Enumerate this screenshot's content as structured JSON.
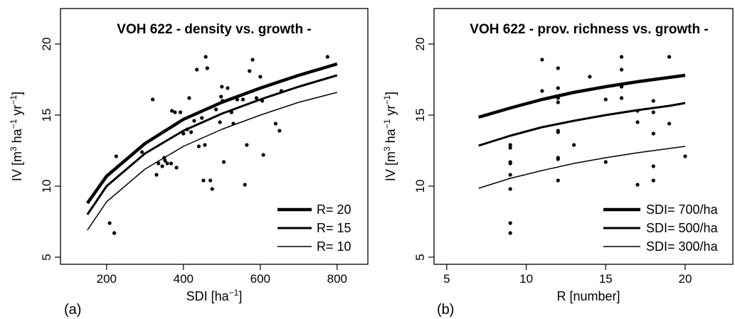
{
  "chart_data": [
    {
      "type": "scatter",
      "panel_label": "(a)",
      "title": "VOH 622 - density vs. growth -",
      "xlabel_main": "SDI [ha",
      "xlabel_sup": "−1",
      "xlabel_end": "]",
      "ylabel_main": "IV [m",
      "ylabel_sup1": "3",
      "ylabel_mid": " ha",
      "ylabel_sup2": "−1",
      "ylabel_mid2": " yr",
      "ylabel_sup3": "−1",
      "ylabel_end": "]",
      "xlim": [
        80,
        880
      ],
      "ylim": [
        4.5,
        22.5
      ],
      "xticks": [
        200,
        400,
        600,
        800
      ],
      "xtick_labels": [
        "200",
        "400",
        "600",
        "800"
      ],
      "yticks": [
        5,
        10,
        15,
        20
      ],
      "ytick_labels": [
        "5",
        "10",
        "15",
        "20"
      ],
      "legend_position": "bottom-right",
      "points": [
        [
          208,
          7.4
        ],
        [
          220,
          6.7
        ],
        [
          225,
          12.1
        ],
        [
          292,
          12.4
        ],
        [
          320,
          16.1
        ],
        [
          330,
          10.8
        ],
        [
          335,
          11.6
        ],
        [
          345,
          11.4
        ],
        [
          350,
          12.0
        ],
        [
          352,
          11.8
        ],
        [
          358,
          11.6
        ],
        [
          368,
          11.6
        ],
        [
          370,
          15.3
        ],
        [
          378,
          15.2
        ],
        [
          382,
          11.3
        ],
        [
          392,
          15.2
        ],
        [
          400,
          13.7
        ],
        [
          410,
          14.0
        ],
        [
          415,
          16.2
        ],
        [
          420,
          13.8
        ],
        [
          428,
          14.6
        ],
        [
          435,
          18.2
        ],
        [
          440,
          12.8
        ],
        [
          448,
          14.8
        ],
        [
          452,
          10.4
        ],
        [
          456,
          12.9
        ],
        [
          458,
          19.1
        ],
        [
          462,
          18.3
        ],
        [
          470,
          10.4
        ],
        [
          475,
          9.8
        ],
        [
          485,
          15.4
        ],
        [
          495,
          14.5
        ],
        [
          498,
          16.3
        ],
        [
          500,
          17.0
        ],
        [
          502,
          16.0
        ],
        [
          505,
          11.7
        ],
        [
          515,
          16.9
        ],
        [
          525,
          15.2
        ],
        [
          530,
          14.4
        ],
        [
          540,
          16.1
        ],
        [
          555,
          16.1
        ],
        [
          560,
          10.1
        ],
        [
          565,
          12.9
        ],
        [
          572,
          18.1
        ],
        [
          580,
          18.9
        ],
        [
          590,
          16.2
        ],
        [
          600,
          17.7
        ],
        [
          605,
          16.0
        ],
        [
          608,
          12.2
        ],
        [
          640,
          14.4
        ],
        [
          650,
          13.9
        ],
        [
          655,
          16.7
        ],
        [
          775,
          19.1
        ]
      ],
      "curves": [
        {
          "name": "R= 20",
          "stroke_width": 4.5,
          "x": [
            150,
            200,
            300,
            400,
            500,
            600,
            700,
            800
          ],
          "y": [
            8.8,
            10.7,
            13.0,
            14.7,
            15.9,
            16.9,
            17.8,
            18.6
          ]
        },
        {
          "name": "R= 15",
          "stroke_width": 3,
          "x": [
            150,
            200,
            300,
            400,
            500,
            600,
            700,
            800
          ],
          "y": [
            8.0,
            10.0,
            12.3,
            13.9,
            15.1,
            16.1,
            17.0,
            17.8
          ]
        },
        {
          "name": "R= 10",
          "stroke_width": 1.5,
          "x": [
            150,
            200,
            300,
            400,
            500,
            600,
            700,
            800
          ],
          "y": [
            6.9,
            8.9,
            11.2,
            12.8,
            14.0,
            15.0,
            15.9,
            16.6
          ]
        }
      ]
    },
    {
      "type": "scatter",
      "panel_label": "(b)",
      "title": "VOH 622 - prov. richness vs. growth -",
      "xlabel_main": "R [number]",
      "ylabel_main": "IV [m",
      "ylabel_sup1": "3",
      "ylabel_mid": " ha",
      "ylabel_sup2": "−1",
      "ylabel_mid2": " yr",
      "ylabel_sup3": "−1",
      "ylabel_end": "]",
      "xlim": [
        4.2,
        23.0
      ],
      "ylim": [
        4.5,
        22.5
      ],
      "xticks": [
        5,
        10,
        15,
        20
      ],
      "xtick_labels": [
        "5",
        "10",
        "15",
        "20"
      ],
      "yticks": [
        5,
        10,
        15,
        20
      ],
      "ytick_labels": [
        "5",
        "10",
        "15",
        "20"
      ],
      "legend_position": "bottom-right",
      "points": [
        [
          9,
          6.7
        ],
        [
          9,
          7.4
        ],
        [
          9,
          9.8
        ],
        [
          9,
          10.8
        ],
        [
          9,
          11.6
        ],
        [
          9,
          11.7
        ],
        [
          9,
          12.7
        ],
        [
          9,
          12.9
        ],
        [
          11,
          16.7
        ],
        [
          11,
          18.9
        ],
        [
          12,
          10.4
        ],
        [
          12,
          11.9
        ],
        [
          12,
          12.0
        ],
        [
          12,
          13.8
        ],
        [
          12,
          13.9
        ],
        [
          12,
          15.9
        ],
        [
          12,
          16.2
        ],
        [
          12,
          16.9
        ],
        [
          12,
          18.3
        ],
        [
          13,
          12.9
        ],
        [
          14,
          17.7
        ],
        [
          15,
          11.7
        ],
        [
          15,
          16.1
        ],
        [
          16,
          16.2
        ],
        [
          16,
          17.0
        ],
        [
          16,
          18.2
        ],
        [
          16,
          19.1
        ],
        [
          17,
          10.1
        ],
        [
          17,
          14.5
        ],
        [
          17,
          15.3
        ],
        [
          18,
          10.4
        ],
        [
          18,
          11.4
        ],
        [
          18,
          13.7
        ],
        [
          18,
          15.2
        ],
        [
          18,
          16.0
        ],
        [
          19,
          14.4
        ],
        [
          19,
          19.1
        ],
        [
          20,
          12.1
        ]
      ],
      "curves": [
        {
          "name_main": "SDI=  700/ha",
          "stroke_width": 4.5,
          "x": [
            7,
            9,
            11,
            13,
            15,
            17,
            19,
            20
          ],
          "y": [
            14.85,
            15.5,
            16.1,
            16.6,
            17.0,
            17.35,
            17.65,
            17.8
          ]
        },
        {
          "name_main": "SDI=  500/ha",
          "stroke_width": 3,
          "x": [
            7,
            9,
            11,
            13,
            15,
            17,
            19,
            20
          ],
          "y": [
            12.85,
            13.55,
            14.15,
            14.6,
            15.0,
            15.35,
            15.65,
            15.85
          ]
        },
        {
          "name_main": "SDI=  300/ha",
          "stroke_width": 1.5,
          "x": [
            7,
            9,
            11,
            13,
            15,
            17,
            19,
            20
          ],
          "y": [
            9.85,
            10.55,
            11.1,
            11.6,
            12.0,
            12.35,
            12.65,
            12.8
          ]
        }
      ]
    }
  ]
}
